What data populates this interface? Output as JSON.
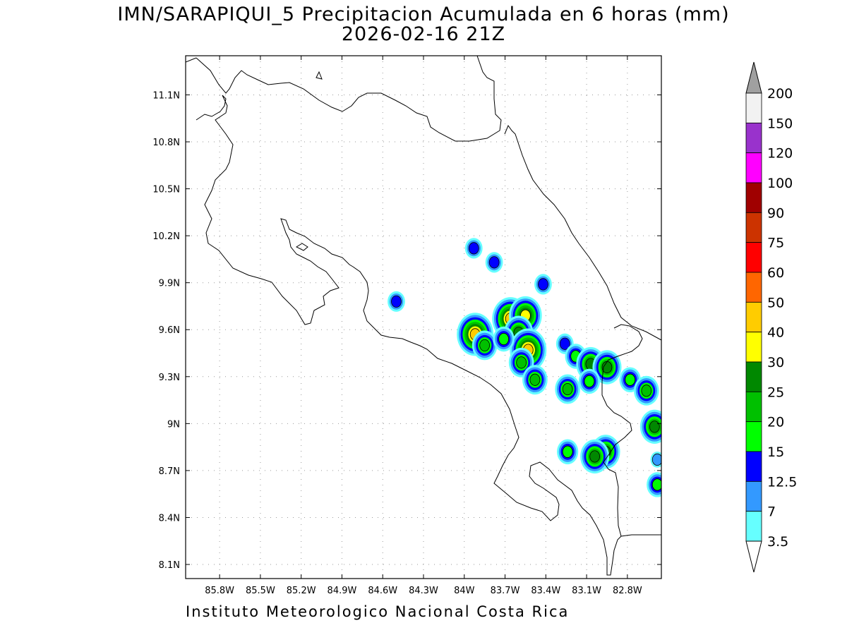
{
  "title": {
    "line1": "IMN/SARAPIQUI_5 Precipitacion Acumulada en 6 horas (mm)",
    "line2": "2026-02-16 21Z"
  },
  "credit": "Instituto Meteorologico Nacional Costa Rica",
  "map": {
    "lon_range": [
      -86.05,
      -82.55
    ],
    "lat_range": [
      8.01,
      11.35
    ],
    "lon_ticks": [
      "85.8W",
      "85.5W",
      "85.2W",
      "84.9W",
      "84.6W",
      "84.3W",
      "84W",
      "83.7W",
      "83.4W",
      "83.1W",
      "82.8W"
    ],
    "lat_ticks": [
      "11.1N",
      "10.8N",
      "10.5N",
      "10.2N",
      "9.9N",
      "9.6N",
      "9.3N",
      "9N",
      "8.7N",
      "8.4N",
      "8.1N"
    ],
    "grid": "dotted"
  },
  "colorbar": {
    "labels": [
      "200",
      "150",
      "120",
      "100",
      "90",
      "75",
      "60",
      "50",
      "40",
      "30",
      "25",
      "20",
      "15",
      "12.5",
      "7",
      "3.5"
    ],
    "colors": [
      "#f2f2f2",
      "#9932cc",
      "#ff00ff",
      "#a00000",
      "#cc3300",
      "#ff0000",
      "#ff6600",
      "#ffcc00",
      "#ffff00",
      "#008800",
      "#00c000",
      "#00ff00",
      "#0000ff",
      "#3399ff",
      "#66ffff"
    ],
    "top_arrow_color": "#a0a0a0",
    "bottom_arrow_color": "#ffffff"
  },
  "precip_cells": [
    {
      "lon": -83.93,
      "lat": 10.12,
      "peak": 12.5
    },
    {
      "lon": -83.78,
      "lat": 10.03,
      "peak": 12.5
    },
    {
      "lon": -84.5,
      "lat": 9.78,
      "peak": 12.5
    },
    {
      "lon": -83.92,
      "lat": 9.57,
      "peak": 40
    },
    {
      "lon": -83.85,
      "lat": 9.5,
      "peak": 20
    },
    {
      "lon": -83.66,
      "lat": 9.67,
      "peak": 40
    },
    {
      "lon": -83.55,
      "lat": 9.69,
      "peak": 30
    },
    {
      "lon": -83.6,
      "lat": 9.58,
      "peak": 25
    },
    {
      "lon": -83.53,
      "lat": 9.47,
      "peak": 40
    },
    {
      "lon": -83.58,
      "lat": 9.39,
      "peak": 20
    },
    {
      "lon": -83.71,
      "lat": 9.54,
      "peak": 15
    },
    {
      "lon": -83.48,
      "lat": 9.28,
      "peak": 20
    },
    {
      "lon": -83.42,
      "lat": 9.89,
      "peak": 12.5
    },
    {
      "lon": -83.26,
      "lat": 9.51,
      "peak": 12.5
    },
    {
      "lon": -83.18,
      "lat": 9.43,
      "peak": 15
    },
    {
      "lon": -83.07,
      "lat": 9.38,
      "peak": 25
    },
    {
      "lon": -82.95,
      "lat": 9.36,
      "peak": 25
    },
    {
      "lon": -83.24,
      "lat": 9.22,
      "peak": 20
    },
    {
      "lon": -82.78,
      "lat": 9.28,
      "peak": 15
    },
    {
      "lon": -82.66,
      "lat": 9.21,
      "peak": 20
    },
    {
      "lon": -82.6,
      "lat": 8.98,
      "peak": 25
    },
    {
      "lon": -82.96,
      "lat": 8.82,
      "peak": 25
    },
    {
      "lon": -83.04,
      "lat": 8.79,
      "peak": 25
    },
    {
      "lon": -83.24,
      "lat": 8.82,
      "peak": 15
    },
    {
      "lon": -82.58,
      "lat": 8.61,
      "peak": 15
    },
    {
      "lon": -82.58,
      "lat": 8.77,
      "peak": 7
    },
    {
      "lon": -83.08,
      "lat": 9.27,
      "peak": 15
    }
  ]
}
